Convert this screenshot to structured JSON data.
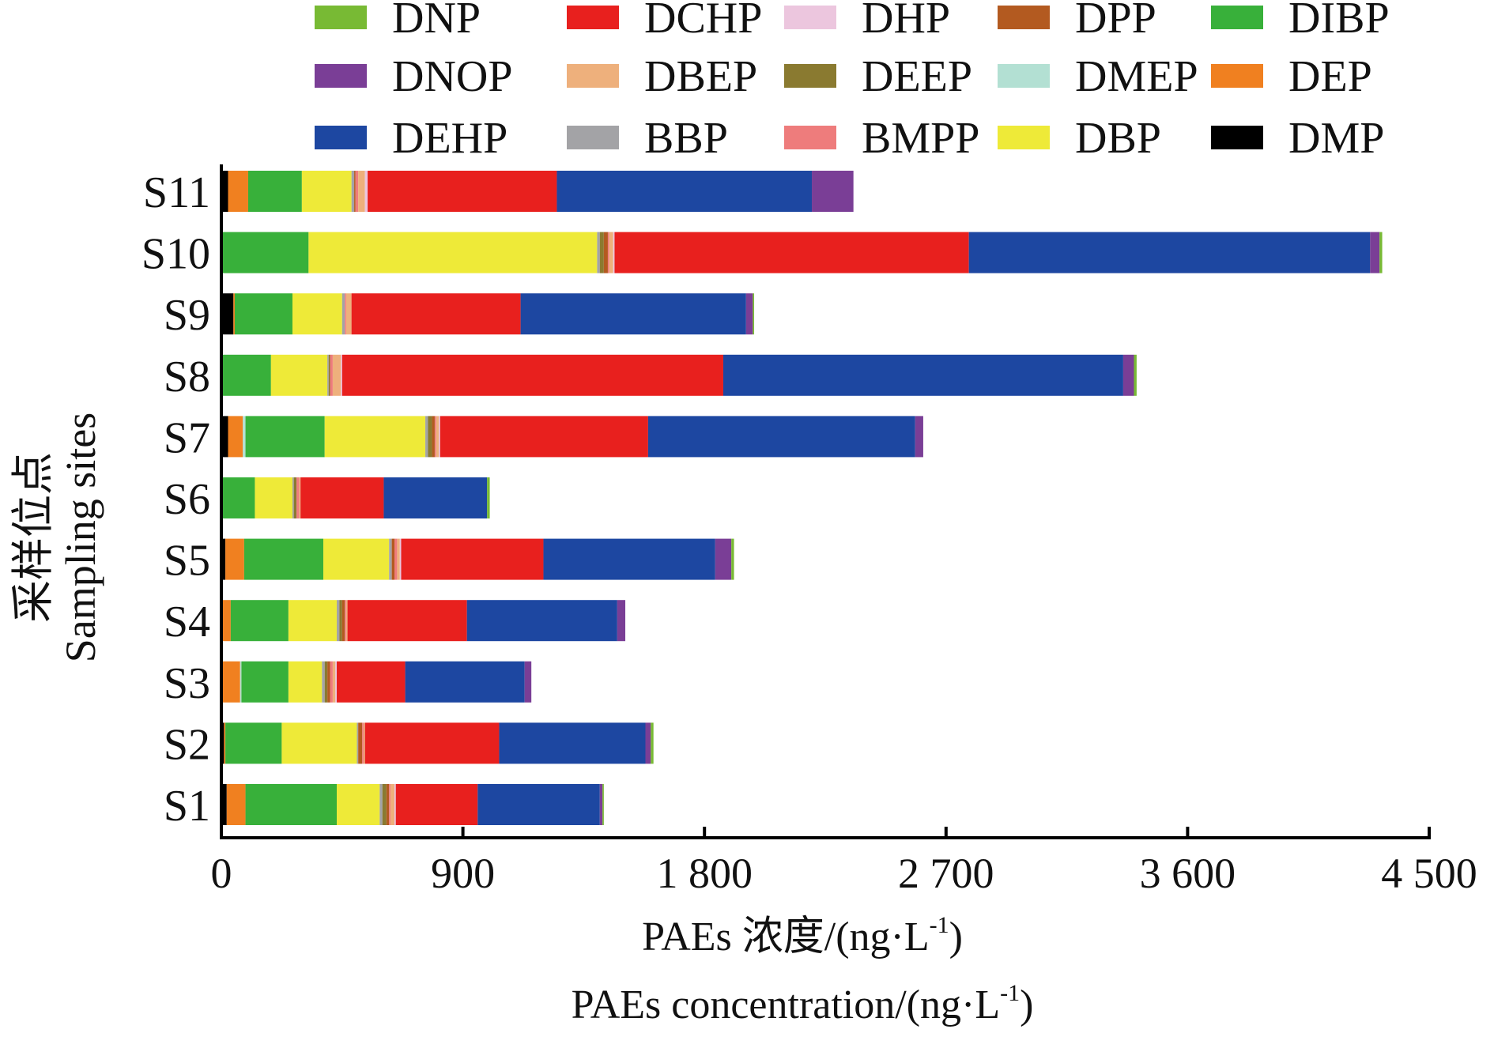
{
  "chart_data": {
    "type": "bar",
    "orientation": "horizontal",
    "stacked": true,
    "categories": [
      "S1",
      "S2",
      "S3",
      "S4",
      "S5",
      "S6",
      "S7",
      "S8",
      "S9",
      "S10",
      "S11"
    ],
    "xlabel_lines": [
      "PAEs 浓度/(ng·L",
      "PAEs concentration/(ng·L"
    ],
    "xlabel_sup": "-1",
    "xlabel_close": ")",
    "ylabel_lines": [
      "采样位点",
      "Sampling sites"
    ],
    "xlim": [
      0,
      4500
    ],
    "xticks": [
      0,
      900,
      1800,
      2700,
      3600,
      4500
    ],
    "xtick_labels": [
      "0",
      "900",
      "1 800",
      "2 700",
      "3 600",
      "4 500"
    ],
    "legend": {
      "position": "top",
      "columns": 5,
      "items": [
        "DNP",
        "DCHP",
        "DHP",
        "DPP",
        "DIBP",
        "DNOP",
        "DBEP",
        "DEEP",
        "DMEP",
        "DEP",
        "DEHP",
        "BBP",
        "BMPP",
        "DBP",
        "DMP"
      ]
    },
    "series_colors": {
      "DMP": "#000000",
      "DEP": "#f08020",
      "DMEP": "#b3e0d3",
      "DIBP": "#38b03a",
      "DBP": "#eeea38",
      "BBP": "#a3a3a6",
      "DEEP": "#8a7a30",
      "DPP": "#b35a20",
      "BMPP": "#ee7c7c",
      "DBEP": "#eeb07c",
      "DHP": "#ecc6de",
      "DCHP": "#e8201e",
      "DEHP": "#1d47a1",
      "DNOP": "#7a3e96",
      "DNP": "#78ba34"
    },
    "stack_order": [
      "DMP",
      "DEP",
      "DMEP",
      "DIBP",
      "DBP",
      "BBP",
      "DEEP",
      "DPP",
      "BMPP",
      "DBEP",
      "DHP",
      "DCHP",
      "DEHP",
      "DNOP",
      "DNP"
    ],
    "series": [
      {
        "name": "DMP",
        "values": [
          20,
          10,
          5,
          0,
          15,
          0,
          25,
          0,
          45,
          0,
          25
        ]
      },
      {
        "name": "DEP",
        "values": [
          70,
          5,
          65,
          35,
          70,
          0,
          55,
          0,
          5,
          0,
          75
        ]
      },
      {
        "name": "DMEP",
        "values": [
          0,
          0,
          5,
          0,
          0,
          0,
          10,
          0,
          0,
          0,
          0
        ]
      },
      {
        "name": "DIBP",
        "values": [
          340,
          210,
          175,
          215,
          295,
          125,
          295,
          185,
          215,
          325,
          200
        ]
      },
      {
        "name": "DBP",
        "values": [
          160,
          280,
          125,
          180,
          245,
          140,
          375,
          210,
          185,
          1075,
          185
        ]
      },
      {
        "name": "BBP",
        "values": [
          10,
          5,
          10,
          10,
          10,
          5,
          10,
          5,
          10,
          10,
          10
        ]
      },
      {
        "name": "DEEP",
        "values": [
          15,
          0,
          10,
          10,
          0,
          10,
          15,
          5,
          0,
          15,
          0
        ]
      },
      {
        "name": "DPP",
        "values": [
          10,
          15,
          10,
          10,
          10,
          0,
          10,
          0,
          0,
          15,
          5
        ]
      },
      {
        "name": "BMPP",
        "values": [
          5,
          5,
          10,
          5,
          10,
          10,
          5,
          10,
          5,
          5,
          10
        ]
      },
      {
        "name": "DBEP",
        "values": [
          15,
          5,
          10,
          5,
          10,
          5,
          10,
          30,
          20,
          15,
          25
        ]
      },
      {
        "name": "DHP",
        "values": [
          5,
          0,
          5,
          0,
          5,
          0,
          5,
          5,
          0,
          5,
          10
        ]
      },
      {
        "name": "DCHP",
        "values": [
          305,
          500,
          255,
          445,
          530,
          310,
          775,
          1420,
          630,
          1320,
          705
        ]
      },
      {
        "name": "DEHP",
        "values": [
          455,
          545,
          445,
          560,
          640,
          385,
          995,
          1490,
          840,
          1495,
          950
        ]
      },
      {
        "name": "DNOP",
        "values": [
          10,
          20,
          25,
          30,
          60,
          0,
          30,
          40,
          25,
          35,
          155
        ]
      },
      {
        "name": "DNP",
        "values": [
          5,
          10,
          0,
          0,
          10,
          10,
          0,
          10,
          5,
          10,
          0
        ]
      }
    ]
  }
}
